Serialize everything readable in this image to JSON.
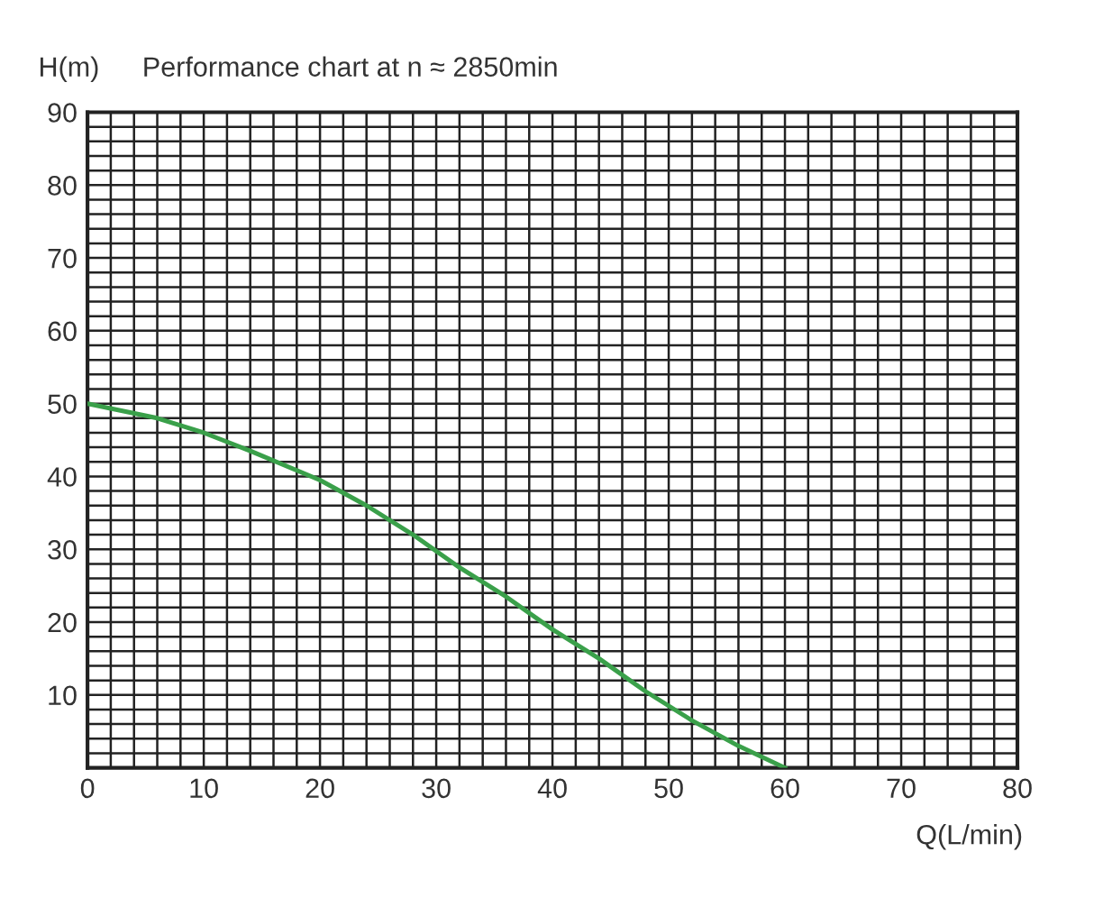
{
  "chart_data": {
    "type": "line",
    "title": "Performance chart at n ≈ 2850min",
    "xlabel": "Q(L/min)",
    "ylabel": "H(m)",
    "series": [
      {
        "color": "#3aa04a",
        "x": [
          0,
          6,
          10,
          14,
          20,
          24,
          28,
          32,
          36,
          40,
          44,
          48,
          52,
          56,
          60
        ],
        "values": [
          50,
          48,
          46,
          43.5,
          39.5,
          36,
          32,
          27.5,
          23.5,
          19,
          15,
          10.5,
          6.5,
          3,
          0
        ]
      }
    ],
    "xlim": [
      0,
      80
    ],
    "ylim": [
      0,
      90
    ],
    "xticks": [
      0,
      {
        "value": 2,
        "label": null
      },
      {
        "value": 4,
        "label": null
      },
      {
        "value": 6,
        "label": null
      },
      {
        "value": 8,
        "label": null
      },
      10,
      {
        "value": 12,
        "label": null
      },
      {
        "value": 14,
        "label": null
      },
      {
        "value": 16,
        "label": null
      },
      {
        "value": 18,
        "label": null
      },
      20,
      {
        "value": 22,
        "label": null
      },
      {
        "value": 24,
        "label": null
      },
      {
        "value": 26,
        "label": null
      },
      {
        "value": 28,
        "label": null
      },
      30,
      {
        "value": 32,
        "label": null
      },
      {
        "value": 34,
        "label": null
      },
      {
        "value": 36,
        "label": null
      },
      {
        "value": 38,
        "label": null
      },
      40,
      {
        "value": 42,
        "label": null
      },
      {
        "value": 44,
        "label": null
      },
      {
        "value": 46,
        "label": null
      },
      {
        "value": 48,
        "label": null
      },
      50,
      {
        "value": 52,
        "label": null
      },
      {
        "value": 54,
        "label": null
      },
      {
        "value": 56,
        "label": null
      },
      {
        "value": 58,
        "label": null
      },
      60,
      {
        "value": 62,
        "label": null
      },
      {
        "value": 64,
        "label": null
      },
      {
        "value": 66,
        "label": null
      },
      {
        "value": 68,
        "label": null
      },
      70,
      {
        "value": 72,
        "label": null
      },
      {
        "value": 74,
        "label": null
      },
      {
        "value": 76,
        "label": null
      },
      {
        "value": 78,
        "label": null
      },
      80
    ],
    "yticks": [
      {
        "value": 0,
        "label": null
      },
      {
        "value": 2,
        "label": null
      },
      {
        "value": 4,
        "label": null
      },
      {
        "value": 6,
        "label": null
      },
      {
        "value": 8,
        "label": null
      },
      10,
      {
        "value": 12,
        "label": null
      },
      {
        "value": 14,
        "label": null
      },
      {
        "value": 16,
        "label": null
      },
      {
        "value": 18,
        "label": null
      },
      20,
      {
        "value": 22,
        "label": null
      },
      {
        "value": 24,
        "label": null
      },
      {
        "value": 26,
        "label": null
      },
      {
        "value": 28,
        "label": null
      },
      30,
      {
        "value": 32,
        "label": null
      },
      {
        "value": 34,
        "label": null
      },
      {
        "value": 36,
        "label": null
      },
      {
        "value": 38,
        "label": null
      },
      40,
      {
        "value": 42,
        "label": null
      },
      {
        "value": 44,
        "label": null
      },
      {
        "value": 46,
        "label": null
      },
      {
        "value": 48,
        "label": null
      },
      50,
      {
        "value": 52,
        "label": null
      },
      {
        "value": 54,
        "label": null
      },
      {
        "value": 56,
        "label": null
      },
      {
        "value": 58,
        "label": null
      },
      60,
      {
        "value": 62,
        "label": null
      },
      {
        "value": 64,
        "label": null
      },
      {
        "value": 66,
        "label": null
      },
      {
        "value": 68,
        "label": null
      },
      70,
      {
        "value": 72,
        "label": null
      },
      {
        "value": 74,
        "label": null
      },
      {
        "value": 76,
        "label": null
      },
      {
        "value": 78,
        "label": null
      },
      80,
      {
        "value": 82,
        "label": null
      },
      {
        "value": 84,
        "label": null
      },
      {
        "value": 86,
        "label": null
      },
      {
        "value": 88,
        "label": null
      },
      90
    ],
    "grid": true,
    "line_style": "solid",
    "marker": "none"
  }
}
